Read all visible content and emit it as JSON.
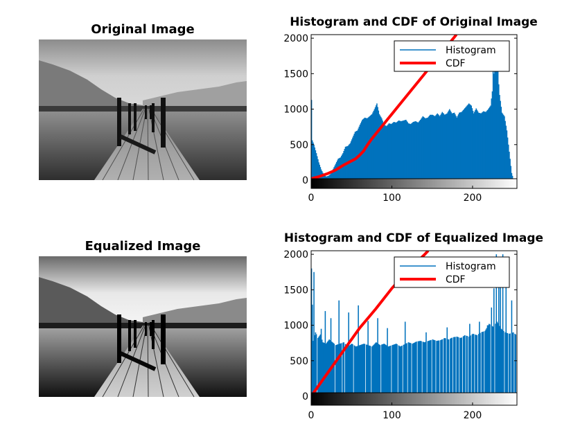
{
  "figure": {
    "panels": [
      {
        "kind": "image",
        "title": "Original Image",
        "variant": "original"
      },
      {
        "kind": "histogram",
        "title": "Histogram and CDF of Original Image"
      },
      {
        "kind": "image",
        "title": "Equalized Image",
        "variant": "equalized"
      },
      {
        "kind": "histogram",
        "title": "Histogram and CDF of Equalized Image"
      }
    ]
  },
  "colors": {
    "histogram": "#0072bd",
    "cdf": "#ff0000",
    "axes": "#000000"
  },
  "chart_data": [
    {
      "type": "bar",
      "title": "Histogram and CDF of Original Image",
      "xlabel": "",
      "ylabel": "",
      "xlim": [
        0,
        255
      ],
      "ylim": [
        0,
        2050
      ],
      "xticks": [
        0,
        100,
        200
      ],
      "yticks": [
        0,
        500,
        1000,
        1500,
        2000
      ],
      "grid": false,
      "legend_position": "top-right",
      "colorbar": "grayscale 0-255",
      "series": [
        {
          "name": "Histogram",
          "style": "bar",
          "anchors": [
            [
              0,
              1130
            ],
            [
              1,
              560
            ],
            [
              3,
              500
            ],
            [
              6,
              380
            ],
            [
              9,
              250
            ],
            [
              12,
              150
            ],
            [
              15,
              80
            ],
            [
              18,
              50
            ],
            [
              21,
              60
            ],
            [
              24,
              90
            ],
            [
              27,
              160
            ],
            [
              30,
              230
            ],
            [
              33,
              300
            ],
            [
              36,
              320
            ],
            [
              39,
              380
            ],
            [
              42,
              470
            ],
            [
              45,
              480
            ],
            [
              48,
              520
            ],
            [
              51,
              600
            ],
            [
              54,
              680
            ],
            [
              57,
              700
            ],
            [
              60,
              780
            ],
            [
              63,
              850
            ],
            [
              66,
              880
            ],
            [
              69,
              870
            ],
            [
              72,
              900
            ],
            [
              75,
              930
            ],
            [
              78,
              1000
            ],
            [
              81,
              1080
            ],
            [
              84,
              930
            ],
            [
              87,
              870
            ],
            [
              90,
              780
            ],
            [
              93,
              760
            ],
            [
              96,
              800
            ],
            [
              99,
              790
            ],
            [
              102,
              820
            ],
            [
              105,
              810
            ],
            [
              108,
              840
            ],
            [
              111,
              830
            ],
            [
              114,
              840
            ],
            [
              117,
              850
            ],
            [
              120,
              800
            ],
            [
              123,
              790
            ],
            [
              126,
              820
            ],
            [
              129,
              830
            ],
            [
              132,
              810
            ],
            [
              135,
              850
            ],
            [
              138,
              900
            ],
            [
              141,
              870
            ],
            [
              144,
              880
            ],
            [
              147,
              920
            ],
            [
              150,
              920
            ],
            [
              153,
              900
            ],
            [
              156,
              940
            ],
            [
              159,
              900
            ],
            [
              162,
              960
            ],
            [
              165,
              920
            ],
            [
              168,
              940
            ],
            [
              171,
              1000
            ],
            [
              174,
              940
            ],
            [
              177,
              950
            ],
            [
              180,
              880
            ],
            [
              183,
              950
            ],
            [
              186,
              960
            ],
            [
              189,
              1000
            ],
            [
              192,
              1040
            ],
            [
              195,
              1080
            ],
            [
              198,
              1050
            ],
            [
              201,
              940
            ],
            [
              204,
              1010
            ],
            [
              207,
              950
            ],
            [
              210,
              940
            ],
            [
              213,
              970
            ],
            [
              216,
              960
            ],
            [
              219,
              1000
            ],
            [
              222,
              1050
            ],
            [
              225,
              1350
            ],
            [
              227,
              1650
            ],
            [
              229,
              1700
            ],
            [
              231,
              1500
            ],
            [
              233,
              1200
            ],
            [
              236,
              950
            ],
            [
              239,
              900
            ],
            [
              242,
              700
            ],
            [
              245,
              400
            ],
            [
              248,
              100
            ],
            [
              250,
              20
            ],
            [
              251,
              0
            ],
            [
              255,
              0
            ]
          ],
          "spikes": [
            [
              225,
              1620
            ],
            [
              228,
              1950
            ],
            [
              231,
              1750
            ]
          ]
        },
        {
          "name": "CDF",
          "style": "line",
          "points": [
            [
              0,
              20
            ],
            [
              10,
              50
            ],
            [
              20,
              90
            ],
            [
              30,
              140
            ],
            [
              40,
              210
            ],
            [
              50,
              270
            ],
            [
              55,
              300
            ],
            [
              60,
              350
            ],
            [
              65,
              410
            ],
            [
              70,
              500
            ],
            [
              75,
              580
            ],
            [
              80,
              650
            ],
            [
              85,
              720
            ],
            [
              90,
              790
            ],
            [
              95,
              860
            ],
            [
              100,
              930
            ],
            [
              110,
              1070
            ],
            [
              120,
              1210
            ],
            [
              130,
              1350
            ],
            [
              140,
              1490
            ],
            [
              150,
              1630
            ],
            [
              160,
              1770
            ],
            [
              170,
              1910
            ],
            [
              180,
              2050
            ]
          ]
        }
      ]
    },
    {
      "type": "bar",
      "title": "Histogram and CDF of Equalized Image",
      "xlabel": "",
      "ylabel": "",
      "xlim": [
        0,
        255
      ],
      "ylim": [
        0,
        2050
      ],
      "xticks": [
        0,
        100,
        200
      ],
      "yticks": [
        0,
        500,
        1000,
        1500,
        2000
      ],
      "grid": false,
      "legend_position": "top-right",
      "colorbar": "grayscale 0-255",
      "series": [
        {
          "name": "Histogram",
          "style": "bar",
          "anchors": [
            [
              0,
              1800
            ],
            [
              2,
              780
            ],
            [
              5,
              900
            ],
            [
              8,
              820
            ],
            [
              11,
              870
            ],
            [
              14,
              760
            ],
            [
              18,
              740
            ],
            [
              22,
              800
            ],
            [
              26,
              760
            ],
            [
              30,
              720
            ],
            [
              35,
              740
            ],
            [
              40,
              760
            ],
            [
              45,
              700
            ],
            [
              50,
              740
            ],
            [
              55,
              700
            ],
            [
              60,
              720
            ],
            [
              65,
              740
            ],
            [
              70,
              720
            ],
            [
              75,
              700
            ],
            [
              80,
              760
            ],
            [
              85,
              720
            ],
            [
              90,
              740
            ],
            [
              95,
              700
            ],
            [
              100,
              720
            ],
            [
              105,
              740
            ],
            [
              110,
              700
            ],
            [
              115,
              730
            ],
            [
              120,
              760
            ],
            [
              125,
              740
            ],
            [
              130,
              770
            ],
            [
              135,
              780
            ],
            [
              140,
              760
            ],
            [
              145,
              780
            ],
            [
              150,
              800
            ],
            [
              155,
              780
            ],
            [
              160,
              790
            ],
            [
              165,
              820
            ],
            [
              170,
              800
            ],
            [
              175,
              830
            ],
            [
              180,
              840
            ],
            [
              185,
              820
            ],
            [
              190,
              860
            ],
            [
              195,
              840
            ],
            [
              200,
              880
            ],
            [
              205,
              860
            ],
            [
              210,
              900
            ],
            [
              215,
              920
            ],
            [
              220,
              1020
            ],
            [
              225,
              980
            ],
            [
              230,
              1050
            ],
            [
              235,
              950
            ],
            [
              240,
              900
            ],
            [
              245,
              880
            ],
            [
              250,
              900
            ],
            [
              255,
              850
            ]
          ],
          "spikes": [
            [
              3,
              1750
            ],
            [
              12,
              950
            ],
            [
              17,
              1200
            ],
            [
              24,
              1100
            ],
            [
              34,
              1350
            ],
            [
              46,
              1180
            ],
            [
              58,
              1280
            ],
            [
              70,
              1060
            ],
            [
              82,
              1100
            ],
            [
              94,
              960
            ],
            [
              116,
              1050
            ],
            [
              142,
              900
            ],
            [
              168,
              970
            ],
            [
              196,
              1020
            ],
            [
              208,
              1050
            ],
            [
              218,
              1000
            ],
            [
              223,
              1250
            ],
            [
              226,
              1520
            ],
            [
              229,
              2000
            ],
            [
              232,
              1800
            ],
            [
              234,
              1950
            ],
            [
              237,
              2000
            ],
            [
              241,
              1600
            ],
            [
              248,
              1350
            ]
          ],
          "gaps": [
            7,
            29,
            38,
            41,
            52,
            67,
            74,
            86,
            99,
            107,
            113,
            119,
            124,
            131,
            137,
            143,
            149,
            154,
            159,
            163,
            167,
            171,
            175,
            179,
            183,
            187,
            191,
            194,
            198,
            202,
            206,
            210,
            214,
            222,
            227,
            239,
            244,
            247,
            251,
            254
          ]
        },
        {
          "name": "CDF",
          "style": "line",
          "points": [
            [
              0,
              0
            ],
            [
              20,
              320
            ],
            [
              40,
              640
            ],
            [
              60,
              960
            ],
            [
              80,
              1230
            ],
            [
              100,
              1520
            ],
            [
              120,
              1770
            ],
            [
              140,
              1990
            ],
            [
              145,
              2050
            ]
          ]
        }
      ]
    }
  ]
}
